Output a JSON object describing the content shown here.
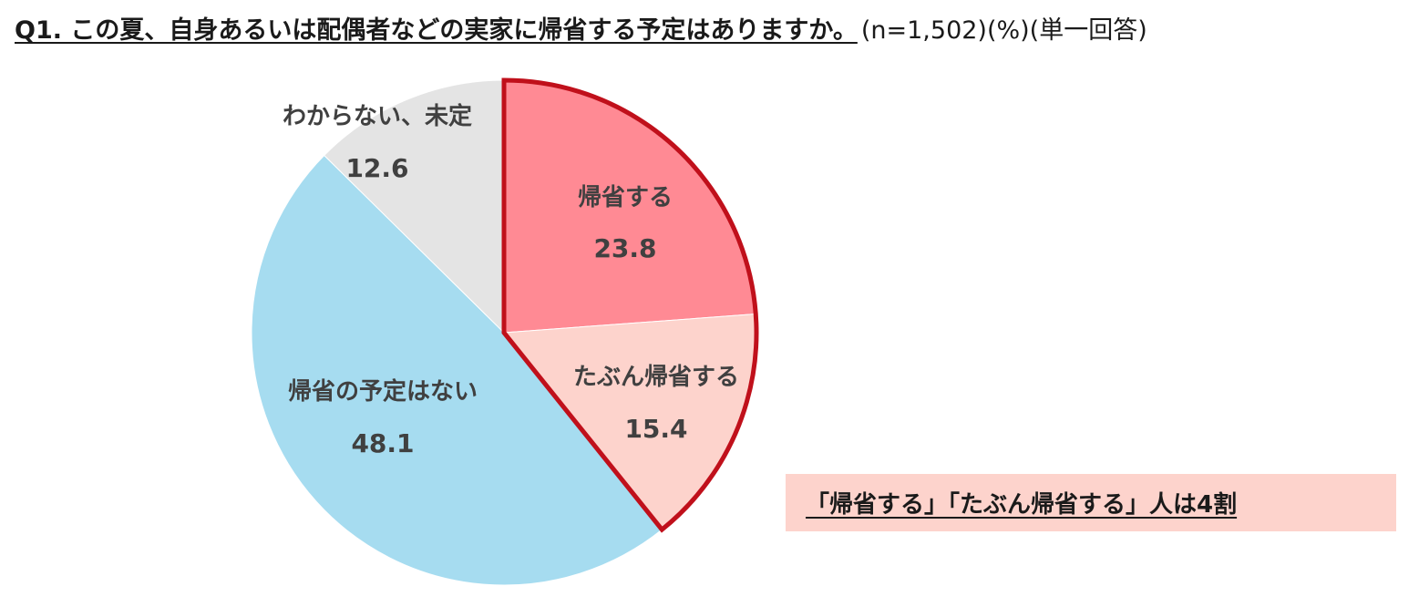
{
  "header": {
    "title": "Q1. この夏、自身あるいは配偶者などの実家に帰省する予定はありますか。",
    "meta": "(n=1,502)(%)(単一回答)"
  },
  "callout": {
    "text": "「帰省する」「たぶん帰省する」人は4割"
  },
  "chart_data": {
    "type": "pie",
    "title": "Q1. この夏、自身あるいは配偶者などの実家に帰省する予定はありますか。",
    "unit": "%",
    "sample_note": "(n=1,502)(%)(単一回答)",
    "start_angle_deg": 0,
    "direction": "clockwise",
    "slices": [
      {
        "label": "帰省する",
        "value": 23.8,
        "color": "#ff8a94",
        "highlight": true
      },
      {
        "label": "たぶん帰省する",
        "value": 15.4,
        "color": "#fdd3cc",
        "highlight": true
      },
      {
        "label": "帰省の予定はない",
        "value": 48.1,
        "color": "#a6dcf0",
        "highlight": false
      },
      {
        "label": "わからない、未定",
        "value": 12.6,
        "color": "#e4e4e4",
        "highlight": false
      }
    ],
    "highlight_border_color": "#c0101b",
    "legend": "none"
  }
}
